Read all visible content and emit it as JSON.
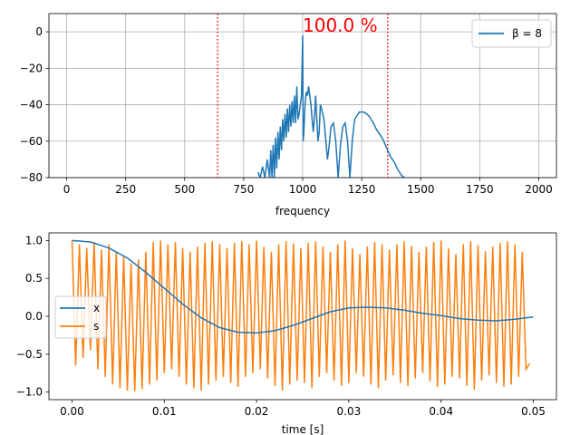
{
  "chart_data": [
    {
      "type": "line",
      "title": "",
      "xlabel": "frequency",
      "ylabel": "",
      "xlim": [
        -75,
        2075
      ],
      "ylim": [
        -80,
        10
      ],
      "xticks": [
        0,
        250,
        500,
        750,
        1000,
        1250,
        1500,
        1750,
        2000
      ],
      "xtick_labels": [
        "0",
        "250",
        "500",
        "750",
        "1000",
        "1250",
        "1500",
        "1750",
        "2000"
      ],
      "yticks": [
        0,
        -20,
        -40,
        -60,
        -80
      ],
      "ytick_labels": [
        "0",
        "−20",
        "−40",
        "−60",
        "−80"
      ],
      "grid": true,
      "legend": "top-right",
      "annotation": {
        "text": "100.0 %",
        "color": "#ff0000"
      },
      "vlines": {
        "x": [
          640,
          1360
        ],
        "color": "#ff0000",
        "style": "dotted"
      },
      "series": [
        {
          "name": "β = 8",
          "color": "#1f77b4",
          "x": [
            810,
            820,
            830,
            840,
            850,
            860,
            865,
            870,
            875,
            880,
            885,
            890,
            895,
            900,
            905,
            910,
            915,
            920,
            925,
            930,
            935,
            940,
            945,
            950,
            955,
            960,
            965,
            970,
            975,
            980,
            985,
            990,
            995,
            1000,
            1002,
            1005,
            1010,
            1015,
            1020,
            1025,
            1030,
            1035,
            1040,
            1045,
            1050,
            1055,
            1060,
            1065,
            1070,
            1075,
            1080,
            1085,
            1090,
            1095,
            1100,
            1105,
            1110,
            1120,
            1130,
            1140,
            1150,
            1160,
            1170,
            1180,
            1190,
            1200,
            1210,
            1220,
            1230,
            1240,
            1250,
            1260,
            1270,
            1280,
            1290,
            1300,
            1310,
            1320,
            1330,
            1340,
            1350,
            1360,
            1370,
            1380,
            1390,
            1400,
            1410,
            1420,
            1430,
            1440,
            1450
          ],
          "y": [
            -77,
            -80,
            -74,
            -80,
            -70,
            -80,
            -65,
            -80,
            -62,
            -80,
            -58,
            -75,
            -55,
            -70,
            -52,
            -65,
            -48,
            -60,
            -45,
            -58,
            -42,
            -55,
            -40,
            -52,
            -38,
            -50,
            -35,
            -50,
            -30,
            -48,
            -45,
            -40,
            -35,
            -2,
            -60,
            -55,
            -40,
            -33,
            -35,
            -30,
            -35,
            -40,
            -48,
            -55,
            -47,
            -35,
            -48,
            -60,
            -55,
            -40,
            -42,
            -45,
            -48,
            -55,
            -62,
            -70,
            -65,
            -52,
            -50,
            -60,
            -80,
            -62,
            -52,
            -50,
            -60,
            -80,
            -60,
            -48,
            -46,
            -44,
            -44,
            -44,
            -45,
            -46,
            -48,
            -50,
            -53,
            -55,
            -57,
            -59,
            -62,
            -65,
            -68,
            -70,
            -72,
            -75,
            -77,
            -79,
            -80,
            -81,
            -82
          ]
        }
      ]
    },
    {
      "type": "line",
      "title": "",
      "xlabel": "time [s]",
      "ylabel": "",
      "xlim": [
        -0.0025,
        0.0525
      ],
      "ylim": [
        -1.1,
        1.1
      ],
      "xticks": [
        0.0,
        0.01,
        0.02,
        0.03,
        0.04,
        0.05
      ],
      "xtick_labels": [
        "0.00",
        "0.01",
        "0.02",
        "0.03",
        "0.04",
        "0.05"
      ],
      "yticks": [
        1.0,
        0.5,
        0.0,
        -0.5,
        -1.0
      ],
      "ytick_labels": [
        "1.0",
        "0.5",
        "0.0",
        "−0.5",
        "−1.0"
      ],
      "grid": false,
      "legend": "center-left",
      "series": [
        {
          "name": "x",
          "color": "#1f77b4",
          "x": [
            0.0,
            0.002,
            0.004,
            0.006,
            0.008,
            0.01,
            0.012,
            0.014,
            0.016,
            0.018,
            0.02,
            0.022,
            0.024,
            0.026,
            0.028,
            0.03,
            0.032,
            0.034,
            0.036,
            0.038,
            0.04,
            0.042,
            0.044,
            0.046,
            0.048,
            0.05
          ],
          "y": [
            1.0,
            0.98,
            0.9,
            0.77,
            0.58,
            0.37,
            0.16,
            -0.02,
            -0.15,
            -0.21,
            -0.22,
            -0.19,
            -0.12,
            -0.03,
            0.06,
            0.11,
            0.12,
            0.11,
            0.08,
            0.04,
            0.01,
            -0.03,
            -0.05,
            -0.06,
            -0.04,
            -0.01
          ]
        },
        {
          "name": "s",
          "color": "#ff7f0e",
          "x": [
            0.0,
            0.0004,
            0.0008,
            0.0012,
            0.0016,
            0.002,
            0.0024,
            0.0028,
            0.0032,
            0.0036,
            0.004,
            0.0044,
            0.0048,
            0.0052,
            0.0056,
            0.006,
            0.0064,
            0.0068,
            0.0072,
            0.0076,
            0.008,
            0.0084,
            0.0088,
            0.0092,
            0.0096,
            0.01,
            0.0104,
            0.0108,
            0.0112,
            0.0116,
            0.012,
            0.0124,
            0.0128,
            0.0132,
            0.0136,
            0.014,
            0.0144,
            0.0148,
            0.0152,
            0.0156,
            0.016,
            0.0164,
            0.0168,
            0.0172,
            0.0176,
            0.018,
            0.0184,
            0.0188,
            0.0192,
            0.0196,
            0.02,
            0.0204,
            0.0208,
            0.0212,
            0.0216,
            0.022,
            0.0224,
            0.0228,
            0.0232,
            0.0236,
            0.024,
            0.0244,
            0.0248,
            0.0252,
            0.0256,
            0.026,
            0.0264,
            0.0268,
            0.0272,
            0.0276,
            0.028,
            0.0284,
            0.0288,
            0.0292,
            0.0296,
            0.03,
            0.0304,
            0.0308,
            0.0312,
            0.0316,
            0.032,
            0.0324,
            0.0328,
            0.0332,
            0.0336,
            0.034,
            0.0344,
            0.0348,
            0.0352,
            0.0356,
            0.036,
            0.0364,
            0.0368,
            0.0372,
            0.0376,
            0.038,
            0.0384,
            0.0388,
            0.0392,
            0.0396,
            0.04,
            0.0404,
            0.0408,
            0.0412,
            0.0416,
            0.042,
            0.0424,
            0.0428,
            0.0432,
            0.0436,
            0.044,
            0.0444,
            0.0448,
            0.0452,
            0.0456,
            0.046,
            0.0464,
            0.0468,
            0.0472,
            0.0476,
            0.048,
            0.0484,
            0.0488,
            0.0492,
            0.0496
          ],
          "y": [
            1.0,
            -0.65,
            0.95,
            -0.55,
            0.9,
            -0.45,
            0.98,
            -0.7,
            0.88,
            -0.8,
            0.95,
            -0.9,
            0.85,
            -0.95,
            0.8,
            -0.98,
            0.7,
            -0.99,
            0.75,
            -0.96,
            0.85,
            -0.9,
            0.98,
            -0.85,
            1.0,
            -0.75,
            0.95,
            -0.7,
            0.98,
            -0.8,
            0.9,
            -0.9,
            0.85,
            -0.95,
            0.92,
            -0.98,
            0.97,
            -0.9,
            0.99,
            -0.85,
            0.95,
            -0.8,
            0.9,
            -0.88,
            0.97,
            -0.93,
            0.99,
            -0.8,
            0.95,
            -0.75,
            1.0,
            -0.7,
            0.92,
            -0.82,
            0.85,
            -0.92,
            0.95,
            -0.98,
            0.99,
            -0.9,
            0.96,
            -0.85,
            0.9,
            -0.88,
            0.97,
            -0.95,
            0.99,
            -0.8,
            0.92,
            -0.75,
            0.85,
            -0.85,
            0.95,
            -0.92,
            1.0,
            -0.88,
            0.9,
            -0.75,
            0.82,
            -0.8,
            0.92,
            -0.9,
            0.98,
            -0.95,
            0.95,
            -0.85,
            0.88,
            -0.78,
            0.95,
            -0.88,
            0.99,
            -0.92,
            0.93,
            -0.82,
            0.85,
            -0.75,
            0.92,
            -0.86,
            0.98,
            -0.93,
            1.0,
            -0.9,
            0.9,
            -0.8,
            0.82,
            -0.82,
            0.95,
            -0.92,
            0.99,
            -0.97,
            0.94,
            -0.85,
            0.86,
            -0.78,
            0.92,
            -0.88,
            0.97,
            -0.93,
            0.99,
            -0.9,
            0.95,
            -0.8,
            0.85,
            -0.7,
            -0.62
          ]
        }
      ]
    }
  ]
}
